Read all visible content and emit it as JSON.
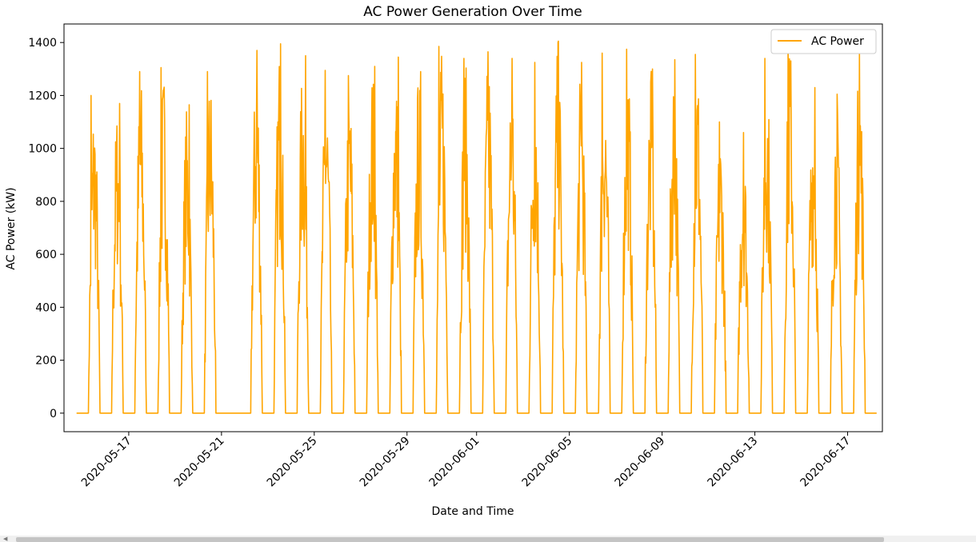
{
  "chart_data": {
    "type": "line",
    "title": "AC Power Generation Over Time",
    "xlabel": "Date and Time",
    "ylabel": "AC Power (kW)",
    "xlim": [
      "2020-05-14T05:00",
      "2020-06-18T12:00"
    ],
    "ylim": [
      -70,
      1470
    ],
    "yticks": [
      0,
      200,
      400,
      600,
      800,
      1000,
      1200,
      1400
    ],
    "xticks": [
      "2020-05-17",
      "2020-05-21",
      "2020-05-25",
      "2020-05-29",
      "2020-06-01",
      "2020-06-05",
      "2020-06-09",
      "2020-06-13",
      "2020-06-17"
    ],
    "grid": false,
    "legend": {
      "placement": "top-right",
      "entries": [
        "AC Power"
      ]
    },
    "series": [
      {
        "name": "AC Power",
        "color": "#ffa500",
        "daily_peaks": [
          {
            "date": "2020-05-15",
            "peak": 1200
          },
          {
            "date": "2020-05-16",
            "peak": 1170
          },
          {
            "date": "2020-05-17",
            "peak": 1290
          },
          {
            "date": "2020-05-18",
            "peak": 1305
          },
          {
            "date": "2020-05-19",
            "peak": 1165
          },
          {
            "date": "2020-05-20",
            "peak": 1290
          },
          {
            "date": "2020-05-22",
            "peak": 1370
          },
          {
            "date": "2020-05-23",
            "peak": 1395
          },
          {
            "date": "2020-05-24",
            "peak": 1350
          },
          {
            "date": "2020-05-25",
            "peak": 1295
          },
          {
            "date": "2020-05-26",
            "peak": 1275
          },
          {
            "date": "2020-05-27",
            "peak": 1310
          },
          {
            "date": "2020-05-28",
            "peak": 1345
          },
          {
            "date": "2020-05-29",
            "peak": 1290
          },
          {
            "date": "2020-05-30",
            "peak": 1385
          },
          {
            "date": "2020-05-31",
            "peak": 1340
          },
          {
            "date": "2020-06-01",
            "peak": 1365
          },
          {
            "date": "2020-06-02",
            "peak": 1340
          },
          {
            "date": "2020-06-03",
            "peak": 1325
          },
          {
            "date": "2020-06-04",
            "peak": 1405
          },
          {
            "date": "2020-06-05",
            "peak": 1325
          },
          {
            "date": "2020-06-06",
            "peak": 1360
          },
          {
            "date": "2020-06-07",
            "peak": 1375
          },
          {
            "date": "2020-06-08",
            "peak": 1300
          },
          {
            "date": "2020-06-09",
            "peak": 1335
          },
          {
            "date": "2020-06-10",
            "peak": 1355
          },
          {
            "date": "2020-06-11",
            "peak": 1100
          },
          {
            "date": "2020-06-12",
            "peak": 1060
          },
          {
            "date": "2020-06-13",
            "peak": 1340
          },
          {
            "date": "2020-06-14",
            "peak": 1410
          },
          {
            "date": "2020-06-15",
            "peak": 1230
          },
          {
            "date": "2020-06-16",
            "peak": 1205
          },
          {
            "date": "2020-06-17",
            "peak": 1355
          }
        ]
      }
    ]
  }
}
